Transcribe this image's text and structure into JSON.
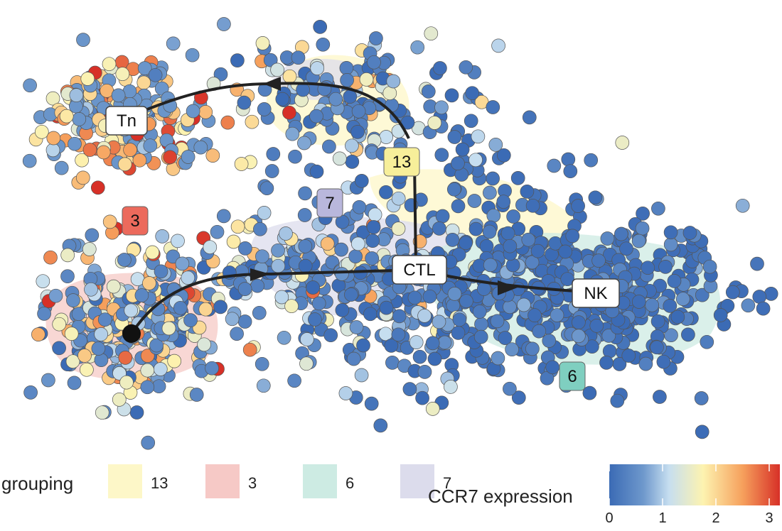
{
  "chart_data": {
    "type": "scatter",
    "colorbar": {
      "title": "CCR7 expression",
      "ticks": [
        "0",
        "1",
        "2",
        "3"
      ],
      "range": [
        0,
        3.2
      ],
      "colors": [
        "#3b6bb5",
        "#7fa6d3",
        "#d6e8ef",
        "#fdf3b0",
        "#f6a15d",
        "#d73027"
      ]
    },
    "grouping": {
      "title": "grouping",
      "groups": [
        {
          "label": "13",
          "color": "#fdf7c8"
        },
        {
          "label": "3",
          "color": "#f6c9c6"
        },
        {
          "label": "6",
          "color": "#cdebe3"
        },
        {
          "label": "7",
          "color": "#dcdcec"
        }
      ]
    },
    "trajectory_nodes": [
      {
        "label": "Tn"
      },
      {
        "label": "CTL"
      },
      {
        "label": "NK"
      }
    ],
    "cluster_labels": [
      {
        "label": "13",
        "color": "#f7ef9a"
      },
      {
        "label": "7",
        "color": "#b9b7dc"
      },
      {
        "label": "3",
        "color": "#ec6a5c"
      },
      {
        "label": "6",
        "color": "#7fcfc0"
      }
    ]
  }
}
